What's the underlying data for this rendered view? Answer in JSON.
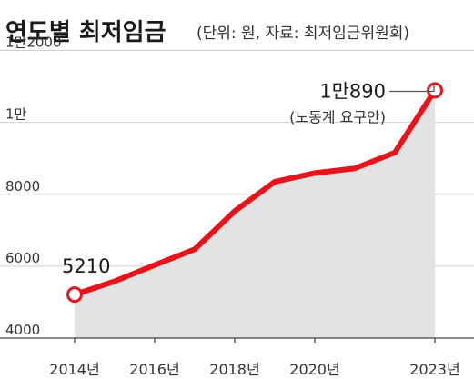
{
  "header": {
    "title": "연도별 최저임금",
    "subtitle": "(단위: 원, 자료: 최저임금위원회)"
  },
  "chart_data": {
    "type": "area",
    "title": "연도별 최저임금",
    "subtitle": "(단위: 원, 자료: 최저임금위원회)",
    "x": [
      2014,
      2015,
      2016,
      2017,
      2018,
      2019,
      2020,
      2021,
      2022,
      2023
    ],
    "series": [
      {
        "values": [
          5210,
          5580,
          6030,
          6470,
          7530,
          8350,
          8590,
          8720,
          9160,
          10890
        ]
      }
    ],
    "ylim": [
      4000,
      12000
    ],
    "yticks": [
      4000,
      6000,
      8000,
      10000,
      12000
    ],
    "ytick_labels": [
      "4000",
      "6000",
      "8000",
      "1만",
      "1만2000"
    ],
    "xticks": [
      2014,
      2016,
      2018,
      2020,
      2023
    ],
    "xtick_labels": [
      "2014년",
      "2016년",
      "2018년",
      "2020년",
      "2023년"
    ],
    "grid": true,
    "annotations": [
      {
        "label": "5210"
      },
      {
        "label": "1만890",
        "note": "(노동계 요구안)"
      }
    ],
    "colors": {
      "line": "#e8141b",
      "fill": "#e3e3e3",
      "marker_fill": "#ffffff",
      "grid": "#cfcfcf"
    }
  }
}
